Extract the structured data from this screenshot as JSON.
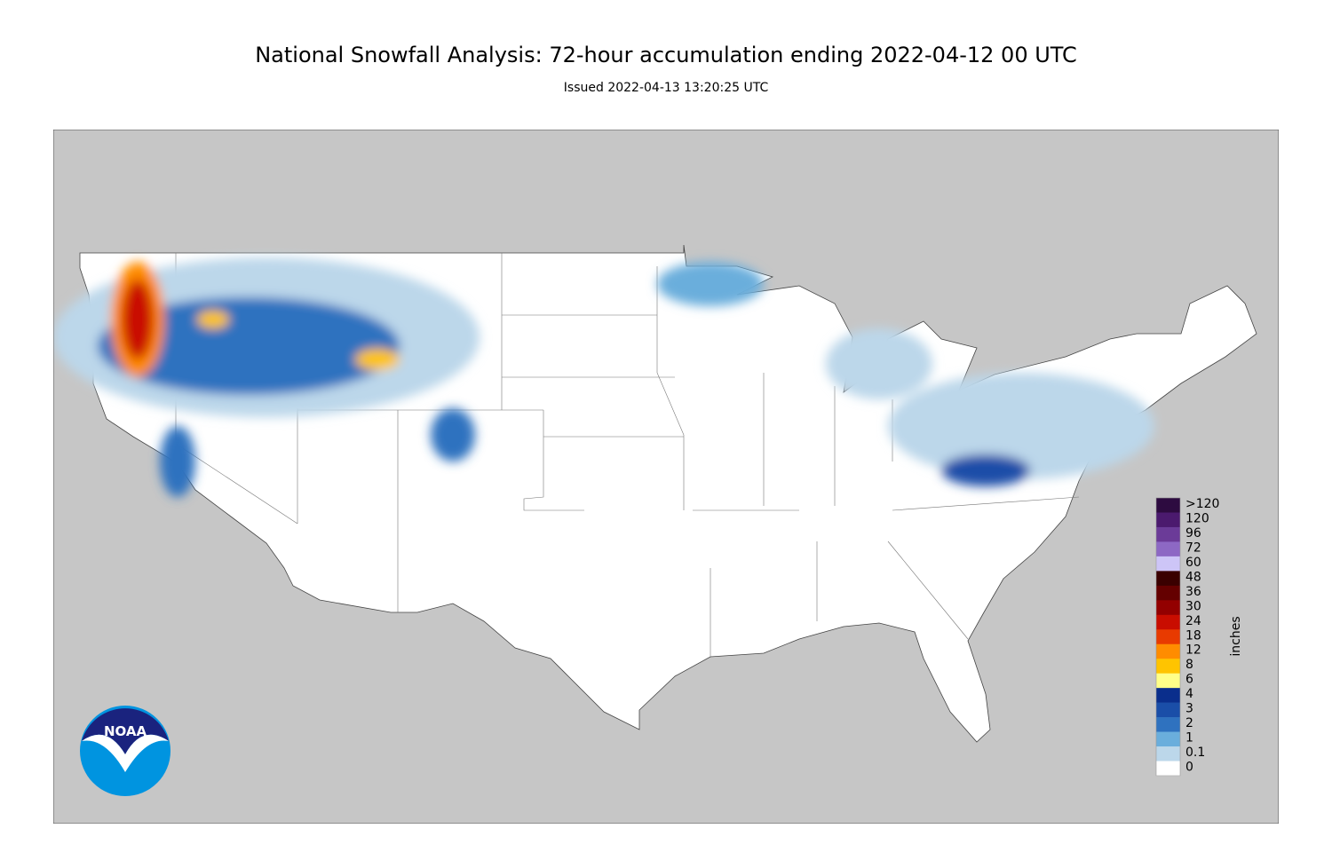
{
  "header": {
    "title": "National Snowfall Analysis: 72-hour accumulation ending 2022-04-12 00 UTC",
    "subtitle": "Issued 2022-04-13 13:20:25 UTC"
  },
  "logo": {
    "text": "NOAA"
  },
  "legend": {
    "unit": "inches",
    "bins": [
      {
        "label": ">120",
        "color": "#2d0b40"
      },
      {
        "label": "120",
        "color": "#4b1a6e"
      },
      {
        "label": "96",
        "color": "#6b3b98"
      },
      {
        "label": "72",
        "color": "#8d68c4"
      },
      {
        "label": "60",
        "color": "#cdc5f7"
      },
      {
        "label": "48",
        "color": "#3a0000"
      },
      {
        "label": "36",
        "color": "#640000"
      },
      {
        "label": "30",
        "color": "#930000"
      },
      {
        "label": "24",
        "color": "#c90d00"
      },
      {
        "label": "18",
        "color": "#e83a00"
      },
      {
        "label": "12",
        "color": "#ff8c00"
      },
      {
        "label": "8",
        "color": "#ffc400"
      },
      {
        "label": "6",
        "color": "#ffff88"
      },
      {
        "label": "4",
        "color": "#0a2e8c"
      },
      {
        "label": "3",
        "color": "#1a4ea8"
      },
      {
        "label": "2",
        "color": "#2f72bf"
      },
      {
        "label": "1",
        "color": "#6aaedc"
      },
      {
        "label": "0.1",
        "color": "#bcd7ea"
      },
      {
        "label": "0",
        "color": "#ffffff"
      }
    ]
  }
}
